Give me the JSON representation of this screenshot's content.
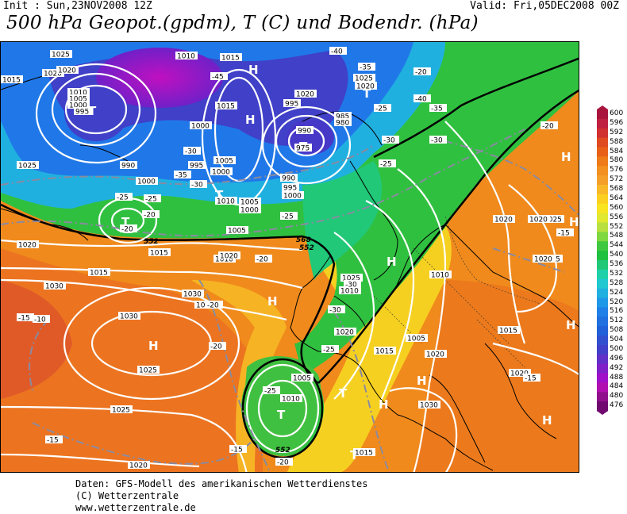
{
  "header": {
    "init": "Init : Sun,23NOV2008 12Z",
    "valid": "Valid: Fri,05DEC2008 00Z",
    "title": "500 hPa Geopot.(gpdm), T (C) und Bodendr. (hPa)"
  },
  "footer": {
    "line1": "Daten: GFS-Modell des amerikanischen Wetterdienstes",
    "line2": "(C) Wetterzentrale",
    "line3": "www.wetterzentrale.de"
  },
  "legend": {
    "labels": [
      "600",
      "596",
      "592",
      "588",
      "584",
      "580",
      "576",
      "572",
      "568",
      "564",
      "560",
      "556",
      "552",
      "548",
      "544",
      "540",
      "536",
      "532",
      "528",
      "524",
      "520",
      "516",
      "512",
      "508",
      "504",
      "500",
      "496",
      "492",
      "488",
      "484",
      "480",
      "476"
    ],
    "colors": [
      "#a8143c",
      "#c02040",
      "#d03030",
      "#e04a20",
      "#e86018",
      "#ee7a18",
      "#f29020",
      "#f4a028",
      "#f8b828",
      "#fcd020",
      "#f8e420",
      "#e0e830",
      "#b8e040",
      "#80d840",
      "#40c840",
      "#20c040",
      "#20c878",
      "#20d0a8",
      "#20c8d0",
      "#20b0e0",
      "#2098e8",
      "#2080e8",
      "#2070e0",
      "#2060d8",
      "#3050d0",
      "#4040c8",
      "#6030c8",
      "#8020c8",
      "#a010c8",
      "#b010b0",
      "#90108c",
      "#700870"
    ]
  },
  "map": {
    "pressure_centers": [
      {
        "label": "T"
      },
      {
        "label": "T"
      },
      {
        "label": "T"
      },
      {
        "label": "T"
      },
      {
        "label": "T"
      },
      {
        "label": "T"
      },
      {
        "label": "T"
      },
      {
        "label": "T"
      },
      {
        "label": "H"
      },
      {
        "label": "H"
      },
      {
        "label": "H"
      },
      {
        "label": "H"
      },
      {
        "label": "H"
      },
      {
        "label": "H"
      },
      {
        "label": "H"
      },
      {
        "label": "H"
      },
      {
        "label": "H"
      },
      {
        "label": "H"
      },
      {
        "label": "H"
      }
    ],
    "isobar_labels": [
      "1025",
      "1020",
      "1015",
      "1010",
      "1005",
      "1000",
      "995",
      "990",
      "1000",
      "1010",
      "1015",
      "1000",
      "995",
      "1005",
      "1000",
      "1005",
      "1010",
      "1015",
      "1020",
      "1025",
      "1020",
      "1015",
      "1010",
      "1005",
      "1000",
      "995",
      "990",
      "985",
      "980",
      "975",
      "990",
      "995",
      "1000",
      "1020",
      "1025",
      "1020",
      "1015",
      "1010",
      "1020",
      "1015",
      "1025",
      "1030",
      "1030",
      "1025",
      "1020",
      "1015",
      "1010",
      "1005",
      "1005",
      "1010",
      "1015",
      "1020",
      "1030",
      "1025",
      "1020",
      "1015",
      "1020",
      "1030",
      "1020",
      "1015",
      "1025",
      "1020",
      "1020"
    ],
    "isotherm_labels": [
      "-45",
      "-40",
      "-35",
      "-40",
      "-35",
      "-30",
      "-30",
      "-35",
      "-25",
      "-30",
      "-25",
      "-20",
      "-25",
      "-20",
      "-20",
      "-30",
      "-30",
      "-25",
      "-20",
      "-25",
      "-20",
      "-15",
      "-15",
      "-15",
      "-15",
      "-20",
      "-10",
      "-20",
      "-25",
      "-15",
      "-20",
      "-25",
      "-30"
    ],
    "contour_labels": [
      "552",
      "568",
      "552",
      "552"
    ]
  }
}
